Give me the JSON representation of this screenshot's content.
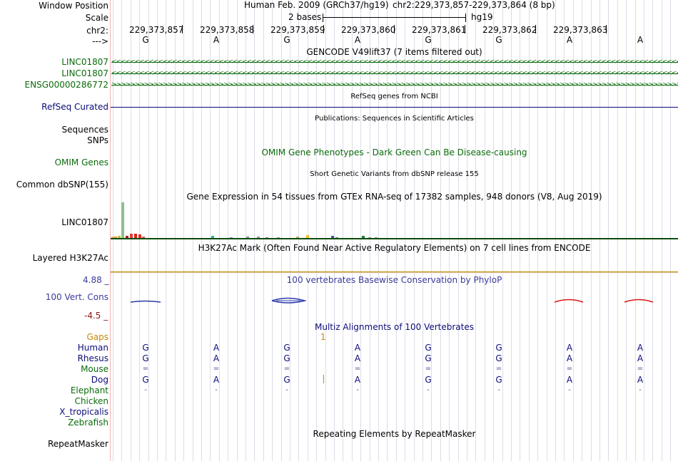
{
  "header": {
    "window_position_label": "Window Position",
    "assembly": "Human Feb. 2009 (GRCh37/hg19)",
    "position": "chr2:229,373,857-229,373,864 (8 bp)",
    "scale_label": "Scale",
    "scale_text": "2 bases",
    "scale_db": "hg19",
    "chrom_label": "chr2:",
    "strand_label": "--->"
  },
  "ruler": {
    "coords": [
      "229,373,857",
      "229,373,858",
      "229,373,859",
      "229,373,860",
      "229,373,861",
      "229,373,862",
      "229,373,863"
    ]
  },
  "sequence": {
    "bases": [
      "G",
      "A",
      "G",
      "A",
      "G",
      "G",
      "A",
      "A"
    ]
  },
  "tracks": {
    "gencode": {
      "title": "GENCODE V49lift37 (7 items filtered out)",
      "genes": [
        {
          "name": "LINC01807",
          "strand": "-"
        },
        {
          "name": "LINC01807",
          "strand": "-"
        },
        {
          "name": "ENSG00000286772",
          "strand": "+"
        }
      ]
    },
    "refseq": {
      "title": "RefSeq genes from NCBI",
      "label": "RefSeq Curated"
    },
    "publications": {
      "title": "Publications: Sequences in Scientific Articles",
      "label1": "Sequences",
      "label2": "SNPs"
    },
    "omim": {
      "title": "OMIM Gene Phenotypes - Dark Green Can Be Disease-causing",
      "label": "OMIM Genes"
    },
    "dbsnp": {
      "title": "Short Genetic Variants from dbSNP release 155",
      "label": "Common dbSNP(155)"
    },
    "gtex": {
      "title": "Gene Expression in 54 tissues from GTEx RNA-seq of 17382 samples, 948 donors (V8, Aug 2019)",
      "label": "LINC01807"
    },
    "h3k27ac": {
      "title": "H3K27Ac Mark (Often Found Near Active Regulatory Elements) on 7 cell lines from ENCODE",
      "label": "Layered H3K27Ac"
    },
    "phylop": {
      "title": "100 vertebrates Basewise Conservation by PhyloP",
      "label": "100 Vert. Cons",
      "max": "4.88 _",
      "min": "-4.5 _"
    },
    "multiz": {
      "title": "Multiz Alignments of 100 Vertebrates",
      "gaps_label": "Gaps",
      "gaps_mark": "1",
      "species": [
        {
          "name": "Human",
          "bases": [
            "G",
            "A",
            "G",
            "A",
            "G",
            "G",
            "A",
            "A"
          ]
        },
        {
          "name": "Rhesus",
          "bases": [
            "G",
            "A",
            "G",
            "A",
            "G",
            "G",
            "A",
            "A"
          ]
        },
        {
          "name": "Mouse",
          "bases": [
            "=",
            "=",
            "=",
            "=",
            "=",
            "=",
            "=",
            "="
          ]
        },
        {
          "name": "Dog",
          "bases": [
            "G",
            "A",
            "G",
            "A",
            "G",
            "G",
            "A",
            "A"
          ]
        },
        {
          "name": "Elephant",
          "bases": [
            "-",
            "-",
            "-",
            "-",
            "-",
            "-",
            "-",
            "-"
          ]
        },
        {
          "name": "Chicken",
          "bases": []
        },
        {
          "name": "X_tropicalis",
          "bases": []
        },
        {
          "name": "Zebrafish",
          "bases": []
        }
      ]
    },
    "repeatmasker": {
      "title": "Repeating Elements by RepeatMasker",
      "label": "RepeatMasker"
    }
  },
  "colors": {
    "gencode": "#0b6b0b",
    "refseq": "#0c0c78",
    "phylop_pos": "#2a3aa8",
    "phylop_neg": "#d81818",
    "h3k27ac": "#c48a00",
    "separator": "#f2b2b2"
  }
}
